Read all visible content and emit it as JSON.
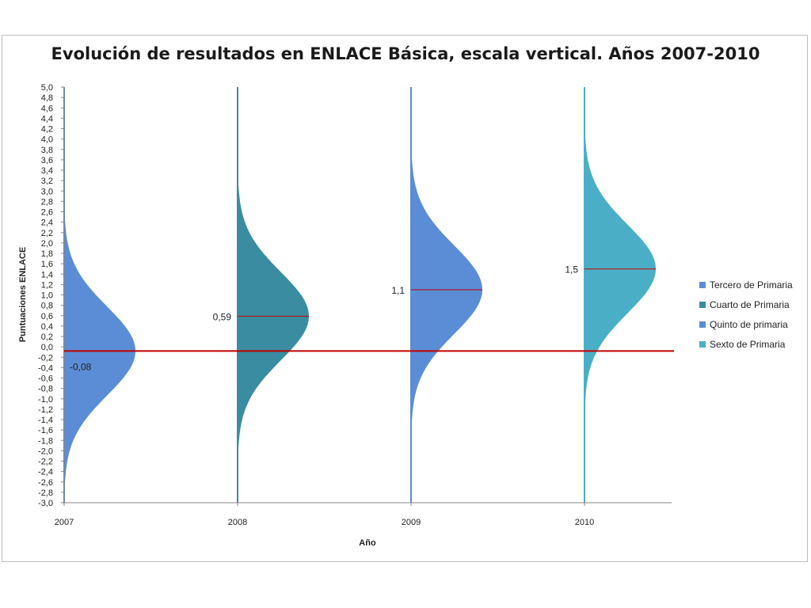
{
  "chart_data": {
    "type": "area",
    "title": "Evolución de resultados en ENLACE Básica, escala vertical. Años 2007-2010",
    "xlabel": "Año",
    "ylabel": "Puntuaciones ENLACE",
    "categories": [
      "2007",
      "2008",
      "2009",
      "2010"
    ],
    "ylim": [
      -3.0,
      5.0
    ],
    "ystep": 0.2,
    "reference_line": {
      "y": -0.08,
      "color": "#c00000"
    },
    "series": [
      {
        "name": "Tercero de Primaria",
        "category": "2007",
        "mean": -0.08,
        "label": "-0,08",
        "color": "#5b8dd6",
        "range": [
          -3.0,
          2.7
        ]
      },
      {
        "name": "Cuarto de Primaria",
        "category": "2008",
        "mean": 0.59,
        "label": "0,59",
        "color": "#3a8ca0",
        "range": [
          -2.0,
          3.1
        ]
      },
      {
        "name": "Quinto de primaria",
        "category": "2009",
        "mean": 1.1,
        "label": "1,1",
        "color": "#5b8dd6",
        "range": [
          -1.4,
          3.6
        ]
      },
      {
        "name": "Sexto de Primaria",
        "category": "2010",
        "mean": 1.5,
        "label": "1,5",
        "color": "#4aafc6",
        "range": [
          -1.2,
          4.2
        ]
      }
    ],
    "grid": false,
    "legend_position": "right"
  }
}
